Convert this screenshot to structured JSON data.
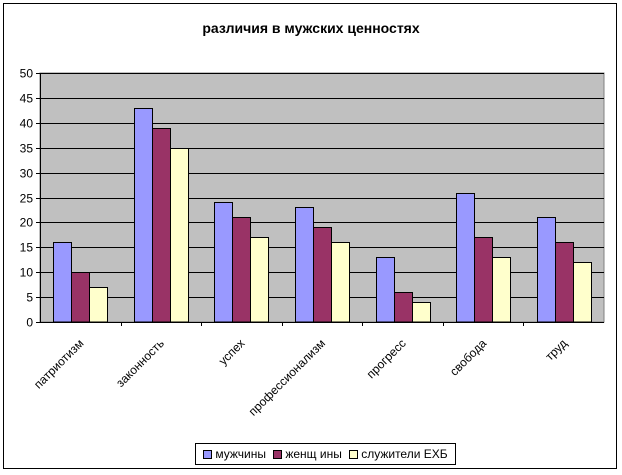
{
  "chart_data": {
    "type": "bar",
    "title": "различия в мужских ценностях",
    "xlabel": "",
    "ylabel": "",
    "ylim": [
      0,
      50
    ],
    "yticks": [
      "0",
      "5",
      "10",
      "15",
      "20",
      "25",
      "30",
      "35",
      "40",
      "45",
      "50"
    ],
    "grid": true,
    "legend_position": "bottom",
    "categories": [
      "патриотизм",
      "законность",
      "успех",
      "профессионализм",
      "прогресс",
      "свобода",
      "труд"
    ],
    "series": [
      {
        "name": "мужчины",
        "color": "#9999ff",
        "values": [
          16,
          43,
          24,
          23,
          13,
          26,
          21
        ]
      },
      {
        "name": "женщ ины",
        "color": "#993366",
        "values": [
          10,
          39,
          21,
          19,
          6,
          17,
          16
        ]
      },
      {
        "name": "служители ЕХБ",
        "color": "#ffffcc",
        "values": [
          7,
          35,
          17,
          16,
          4,
          13,
          12
        ]
      }
    ],
    "plot_background": "#c0c0c0"
  }
}
